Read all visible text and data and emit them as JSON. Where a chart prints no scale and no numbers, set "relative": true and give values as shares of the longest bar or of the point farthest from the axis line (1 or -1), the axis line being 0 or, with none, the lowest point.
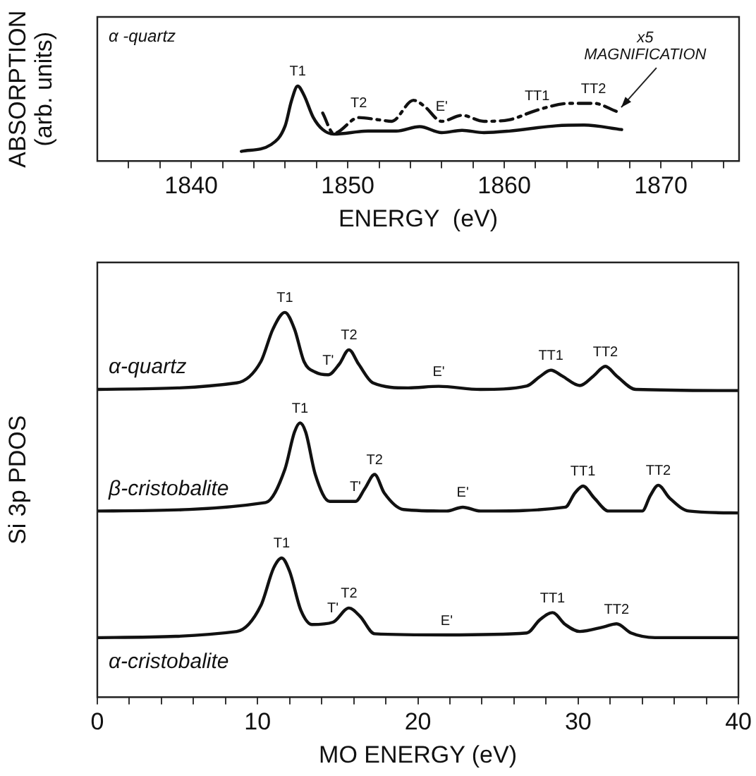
{
  "chart_data": [
    {
      "type": "line",
      "xlabel": "ENERGY  (eV)",
      "ylabel": "ABSORPTION\n(arb. units)",
      "relative": true,
      "xlim": [
        1834,
        1875
      ],
      "xticks": [
        {
          "value": 1836,
          "label": null
        },
        {
          "value": 1838,
          "label": null
        },
        1840,
        {
          "value": 1842,
          "label": null
        },
        {
          "value": 1844,
          "label": null
        },
        {
          "value": 1846,
          "label": null
        },
        {
          "value": 1848,
          "label": null
        },
        1850,
        {
          "value": 1852,
          "label": null
        },
        {
          "value": 1854,
          "label": null
        },
        {
          "value": 1856,
          "label": null
        },
        {
          "value": 1858,
          "label": null
        },
        1860,
        {
          "value": 1862,
          "label": null
        },
        {
          "value": 1864,
          "label": null
        },
        {
          "value": 1866,
          "label": null
        },
        {
          "value": 1868,
          "label": null
        },
        1870,
        {
          "value": 1872,
          "label": null
        },
        {
          "value": 1874,
          "label": null
        }
      ],
      "series": [
        {
          "color": "#111111",
          "line_style": "solid",
          "x": [
            1843.2,
            1845.1,
            1846.0,
            1846.4,
            1846.8,
            1847.2,
            1847.8,
            1848.4,
            1849.1,
            1851.3,
            1853.1,
            1854.6,
            1856.0,
            1857.3,
            1858.7,
            1860.3,
            1863.3,
            1865.1,
            1867.5
          ],
          "values": [
            0.13,
            0.22,
            0.47,
            0.8,
            1.0,
            0.88,
            0.58,
            0.42,
            0.36,
            0.4,
            0.4,
            0.46,
            0.38,
            0.41,
            0.38,
            0.4,
            0.47,
            0.48,
            0.42
          ]
        },
        {
          "color": "#111111",
          "line_style": "dashed",
          "x": [
            1848.4,
            1849.1,
            1850.7,
            1852.0,
            1852.8,
            1854.2,
            1854.9,
            1856.0,
            1857.3,
            1858.7,
            1860.3,
            1862.1,
            1864.2,
            1865.7,
            1867.2
          ],
          "values": [
            0.64,
            0.37,
            0.58,
            0.55,
            0.53,
            0.81,
            0.73,
            0.53,
            0.61,
            0.53,
            0.55,
            0.68,
            0.77,
            0.77,
            0.66
          ]
        }
      ],
      "annotations": [
        "α -quartz",
        {
          "text": "T1",
          "x": 1846.8,
          "y": 1.0
        },
        {
          "text": "T2",
          "x": 1850.7,
          "y": 0.58
        },
        {
          "text": "E'",
          "x": 1856.0,
          "y": 0.53
        },
        {
          "text": "TT1",
          "x": 1862.1,
          "y": 0.68
        },
        {
          "text": "TT2",
          "x": 1865.7,
          "y": 0.77
        },
        {
          "text": "x5 MAGNIFICATION",
          "x": 1867.2,
          "y": 0.66
        }
      ]
    },
    {
      "type": "line",
      "xlabel": "MO ENERGY (eV)",
      "ylabel": "Si 3p PDOS",
      "relative": true,
      "xlim": [
        0,
        40
      ],
      "xticks": [
        0,
        {
          "value": 2,
          "label": null
        },
        {
          "value": 4,
          "label": null
        },
        {
          "value": 6,
          "label": null
        },
        {
          "value": 8,
          "label": null
        },
        10,
        {
          "value": 12,
          "label": null
        },
        {
          "value": 14,
          "label": null
        },
        {
          "value": 16,
          "label": null
        },
        {
          "value": 18,
          "label": null
        },
        20,
        {
          "value": 22,
          "label": null
        },
        {
          "value": 24,
          "label": null
        },
        {
          "value": 26,
          "label": null
        },
        {
          "value": 28,
          "label": null
        },
        30,
        {
          "value": 32,
          "label": null
        },
        {
          "value": 34,
          "label": null
        },
        {
          "value": 36,
          "label": null
        },
        {
          "value": 38,
          "label": null
        },
        40
      ],
      "series": [
        {
          "name": "α-quartz",
          "color": "#111111",
          "x": [
            0,
            8.7,
            10.2,
            10.96,
            11.7,
            12.3,
            12.9,
            13.6,
            14.4,
            15.1,
            15.7,
            16.3,
            17.2,
            19.4,
            21.3,
            23.9,
            26.8,
            27.6,
            28.3,
            29.0,
            30.1,
            30.96,
            31.7,
            32.4,
            33.6,
            40
          ],
          "values": [
            0.8,
            0.817,
            0.872,
            0.957,
            1.0,
            0.957,
            0.872,
            0.845,
            0.838,
            0.866,
            0.903,
            0.866,
            0.817,
            0.804,
            0.808,
            0.8,
            0.809,
            0.833,
            0.85,
            0.835,
            0.81,
            0.835,
            0.86,
            0.835,
            0.8,
            0.797
          ]
        },
        {
          "name": "β-cristobalite",
          "color": "#111111",
          "x": [
            0,
            10.5,
            11.7,
            12.3,
            12.65,
            13.0,
            13.6,
            14.5,
            16.1,
            16.7,
            17.3,
            17.9,
            19.1,
            21.8,
            22.8,
            23.9,
            29.2,
            29.8,
            30.3,
            31.0,
            31.9,
            34.0,
            34.5,
            35.0,
            35.7,
            36.9,
            40
          ],
          "values": [
            0.484,
            0.506,
            0.592,
            0.689,
            0.713,
            0.689,
            0.579,
            0.509,
            0.509,
            0.543,
            0.579,
            0.531,
            0.488,
            0.484,
            0.494,
            0.484,
            0.494,
            0.531,
            0.549,
            0.518,
            0.484,
            0.484,
            0.524,
            0.551,
            0.518,
            0.484,
            0.479
          ]
        },
        {
          "name": "α-cristobalite",
          "color": "#111111",
          "x": [
            0,
            8.7,
            10.2,
            11.0,
            11.5,
            12.0,
            12.7,
            13.4,
            14.7,
            15.7,
            16.4,
            17.3,
            21.8,
            26.8,
            27.6,
            28.4,
            29.2,
            30.1,
            31.6,
            32.4,
            33.3,
            34.8,
            40
          ],
          "values": [
            0.155,
            0.171,
            0.238,
            0.336,
            0.362,
            0.327,
            0.226,
            0.189,
            0.195,
            0.232,
            0.21,
            0.165,
            0.162,
            0.167,
            0.201,
            0.22,
            0.189,
            0.171,
            0.183,
            0.191,
            0.167,
            0.155,
            0.155
          ]
        }
      ],
      "annotations": [
        {
          "text": "T1",
          "x": 11.7,
          "y": 1.0
        },
        {
          "text": "T'",
          "x": 14.4,
          "y": 0.838
        },
        {
          "text": "T2",
          "x": 15.7,
          "y": 0.903
        },
        {
          "text": "E'",
          "x": 21.3,
          "y": 0.808
        },
        {
          "text": "TT1",
          "x": 28.3,
          "y": 0.85
        },
        {
          "text": "TT2",
          "x": 31.7,
          "y": 0.86
        },
        {
          "text": "T1",
          "x": 12.65,
          "y": 0.713
        },
        {
          "text": "T'",
          "x": 16.1,
          "y": 0.509
        },
        {
          "text": "T2",
          "x": 17.3,
          "y": 0.579
        },
        {
          "text": "E'",
          "x": 22.8,
          "y": 0.494
        },
        {
          "text": "TT1",
          "x": 30.3,
          "y": 0.549
        },
        {
          "text": "TT2",
          "x": 35.0,
          "y": 0.551
        },
        {
          "text": "T1",
          "x": 11.5,
          "y": 0.362
        },
        {
          "text": "T'",
          "x": 14.7,
          "y": 0.195
        },
        {
          "text": "T2",
          "x": 15.7,
          "y": 0.232
        },
        {
          "text": "E'",
          "x": 21.8,
          "y": 0.162
        },
        {
          "text": "TT1",
          "x": 28.4,
          "y": 0.22
        },
        {
          "text": "TT2",
          "x": 32.4,
          "y": 0.191
        }
      ]
    }
  ]
}
